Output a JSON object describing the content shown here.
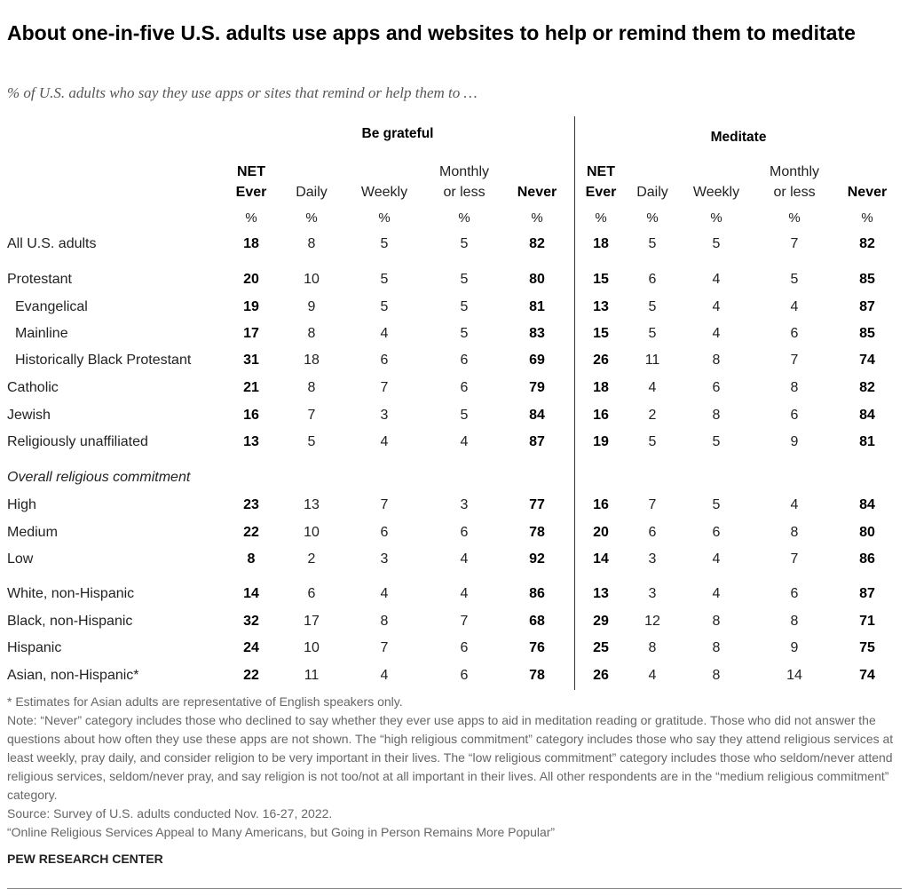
{
  "title": "About one-in-five U.S. adults use apps and websites to help or remind them to meditate",
  "subtitle": "% of U.S. adults who say they use apps or sites that remind or help them to …",
  "groups": [
    "Be grateful",
    "Meditate"
  ],
  "columns": [
    {
      "lines": [
        "NET",
        "Ever"
      ],
      "bold": true
    },
    {
      "lines": [
        "Daily"
      ],
      "bold": false
    },
    {
      "lines": [
        "Weekly"
      ],
      "bold": false
    },
    {
      "lines": [
        "Monthly",
        "or less"
      ],
      "bold": false
    },
    {
      "lines": [
        "Never"
      ],
      "bold": true
    }
  ],
  "percent_sign": "%",
  "chart_data": {
    "type": "table",
    "title": "About one-in-five U.S. adults use apps and websites to help or remind them to meditate",
    "series": [
      "Be grateful",
      "Meditate"
    ],
    "column_labels": [
      "NET Ever",
      "Daily",
      "Weekly",
      "Monthly or less",
      "Never"
    ],
    "rows": [
      {
        "label": "All U.S. adults",
        "style": "normal",
        "be_grateful": [
          "18",
          "8",
          "5",
          "5",
          "82"
        ],
        "meditate": [
          "18",
          "5",
          "5",
          "7",
          "82"
        ]
      },
      {
        "label": "Protestant",
        "style": "normal",
        "be_grateful": [
          "20",
          "10",
          "5",
          "5",
          "80"
        ],
        "meditate": [
          "15",
          "6",
          "4",
          "5",
          "85"
        ]
      },
      {
        "label": "Evangelical",
        "style": "indent",
        "be_grateful": [
          "19",
          "9",
          "5",
          "5",
          "81"
        ],
        "meditate": [
          "13",
          "5",
          "4",
          "4",
          "87"
        ]
      },
      {
        "label": "Mainline",
        "style": "indent",
        "be_grateful": [
          "17",
          "8",
          "4",
          "5",
          "83"
        ],
        "meditate": [
          "15",
          "5",
          "4",
          "6",
          "85"
        ]
      },
      {
        "label": "Historically Black Protestant",
        "style": "indent",
        "be_grateful": [
          "31",
          "18",
          "6",
          "6",
          "69"
        ],
        "meditate": [
          "26",
          "11",
          "8",
          "7",
          "74"
        ]
      },
      {
        "label": "Catholic",
        "style": "normal",
        "be_grateful": [
          "21",
          "8",
          "7",
          "6",
          "79"
        ],
        "meditate": [
          "18",
          "4",
          "6",
          "8",
          "82"
        ]
      },
      {
        "label": "Jewish",
        "style": "normal",
        "be_grateful": [
          "16",
          "7",
          "3",
          "5",
          "84"
        ],
        "meditate": [
          "16",
          "2",
          "8",
          "6",
          "84"
        ]
      },
      {
        "label": "Religiously unaffiliated",
        "style": "normal",
        "be_grateful": [
          "13",
          "5",
          "4",
          "4",
          "87"
        ],
        "meditate": [
          "19",
          "5",
          "5",
          "9",
          "81"
        ]
      },
      {
        "label": "Overall religious commitment",
        "style": "heading",
        "be_grateful": [],
        "meditate": []
      },
      {
        "label": "High",
        "style": "normal",
        "be_grateful": [
          "23",
          "13",
          "7",
          "3",
          "77"
        ],
        "meditate": [
          "16",
          "7",
          "5",
          "4",
          "84"
        ]
      },
      {
        "label": "Medium",
        "style": "normal",
        "be_grateful": [
          "22",
          "10",
          "6",
          "6",
          "78"
        ],
        "meditate": [
          "20",
          "6",
          "6",
          "8",
          "80"
        ]
      },
      {
        "label": "Low",
        "style": "normal",
        "be_grateful": [
          "8",
          "2",
          "3",
          "4",
          "92"
        ],
        "meditate": [
          "14",
          "3",
          "4",
          "7",
          "86"
        ]
      },
      {
        "label": "White, non-Hispanic",
        "style": "normal",
        "be_grateful": [
          "14",
          "6",
          "4",
          "4",
          "86"
        ],
        "meditate": [
          "13",
          "3",
          "4",
          "6",
          "87"
        ]
      },
      {
        "label": "Black, non-Hispanic",
        "style": "normal",
        "be_grateful": [
          "32",
          "17",
          "8",
          "7",
          "68"
        ],
        "meditate": [
          "29",
          "12",
          "8",
          "8",
          "71"
        ]
      },
      {
        "label": "Hispanic",
        "style": "normal",
        "be_grateful": [
          "24",
          "10",
          "7",
          "6",
          "76"
        ],
        "meditate": [
          "25",
          "8",
          "8",
          "9",
          "75"
        ]
      },
      {
        "label": "Asian, non-Hispanic*",
        "style": "normal",
        "be_grateful": [
          "22",
          "11",
          "4",
          "6",
          "78"
        ],
        "meditate": [
          "26",
          "4",
          "8",
          "14",
          "74"
        ]
      }
    ]
  },
  "notes": [
    "* Estimates for Asian adults are representative of English speakers only.",
    "Note: “Never” category includes those who declined to say whether they ever use apps to aid in meditation reading or gratitude. Those who did not answer the questions about how often they use these apps are not shown. The “high religious commitment” category includes those who say they attend religious services at least weekly, pray daily, and consider religion to be very important in their lives. The “low religious commitment” category includes those who seldom/never attend religious services, seldom/never pray, and say religion is not too/not at all important in their lives. All other respondents are in the “medium religious commitment” category.",
    "Source: Survey of U.S. adults conducted Nov. 16-27, 2022.",
    "“Online Religious Services Appeal to Many Americans, but Going in Person Remains More Popular”"
  ],
  "org": "PEW RESEARCH CENTER"
}
